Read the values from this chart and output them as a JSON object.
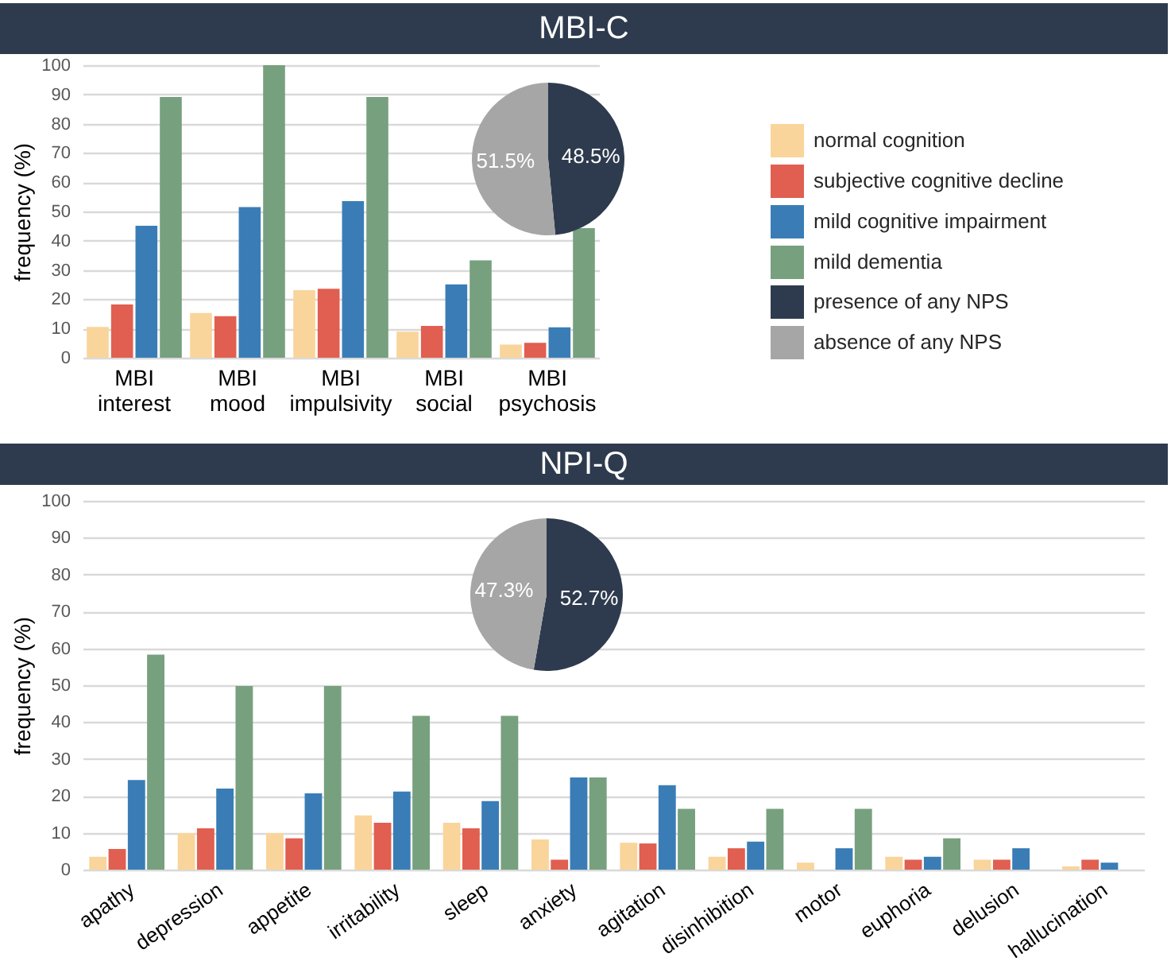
{
  "chart_data": [
    {
      "type": "bar",
      "title": "MBI-C",
      "ylabel": "frequency (%)",
      "categories": [
        "MBI interest",
        "MBI mood",
        "MBI impulsivity",
        "MBI social",
        "MBI psychosis"
      ],
      "series": [
        {
          "name": "normal cognition",
          "color": "#f9d59b",
          "values": [
            10.5,
            15.3,
            23.1,
            8.9,
            4.5
          ]
        },
        {
          "name": "subjective cognitive decline",
          "color": "#e05f50",
          "values": [
            18.2,
            14.2,
            23.6,
            10.9,
            5.1
          ]
        },
        {
          "name": "mild cognitive impairment",
          "color": "#3a7db6",
          "values": [
            45.1,
            51.5,
            53.5,
            25.1,
            10.4
          ]
        },
        {
          "name": "mild dementia",
          "color": "#77a07f",
          "values": [
            89.1,
            100,
            89.1,
            33.3,
            44.3
          ]
        }
      ],
      "ylim": [
        0,
        100
      ],
      "yticks": [
        0,
        10,
        20,
        30,
        40,
        50,
        60,
        70,
        80,
        90,
        100
      ],
      "grid": "y",
      "legend": "right"
    },
    {
      "type": "pie",
      "categories": [
        "presence of any NPS",
        "absence of any NPS"
      ],
      "values": [
        48.5,
        51.5
      ],
      "colors": [
        "#2e3b4e",
        "#a6a6a6"
      ],
      "value_labels": [
        "48.5%",
        "51.5%"
      ],
      "legend": "right"
    },
    {
      "type": "bar",
      "title": "NPI-Q",
      "ylabel": "frequency (%)",
      "categories": [
        "apathy",
        "depression",
        "appetite",
        "irritability",
        "sleep",
        "anxiety",
        "agitation",
        "disinhibition",
        "motor",
        "euphoria",
        "delusion",
        "hallucination"
      ],
      "series": [
        {
          "color": "#f9d59b",
          "values": [
            3.5,
            9.9,
            9.9,
            14.7,
            12.7,
            8.2,
            7.3,
            3.5,
            1.9,
            3.5,
            2.7,
            0.9
          ]
        },
        {
          "color": "#e05f50",
          "values": [
            5.6,
            11.2,
            8.5,
            12.7,
            11.2,
            2.7,
            7.1,
            5.8,
            0,
            2.7,
            2.7,
            2.7
          ]
        },
        {
          "color": "#3a7db6",
          "values": [
            24.3,
            22.0,
            20.7,
            21.2,
            18.6,
            25.0,
            22.9,
            7.6,
            5.8,
            3.5,
            5.8,
            1.9
          ]
        },
        {
          "color": "#77a07f",
          "values": [
            58.3,
            49.8,
            49.8,
            41.7,
            41.7,
            25.0,
            16.5,
            16.5,
            16.5,
            8.5,
            0,
            0
          ]
        }
      ],
      "ylim": [
        0,
        100
      ],
      "yticks": [
        0,
        10,
        20,
        30,
        40,
        50,
        60,
        70,
        80,
        90,
        100
      ],
      "grid": "y"
    },
    {
      "type": "pie",
      "categories": [
        null,
        null
      ],
      "values": [
        52.7,
        47.3
      ],
      "colors": [
        "#2e3b4e",
        "#a6a6a6"
      ],
      "value_labels": [
        "52.7%",
        "47.3%"
      ]
    }
  ]
}
